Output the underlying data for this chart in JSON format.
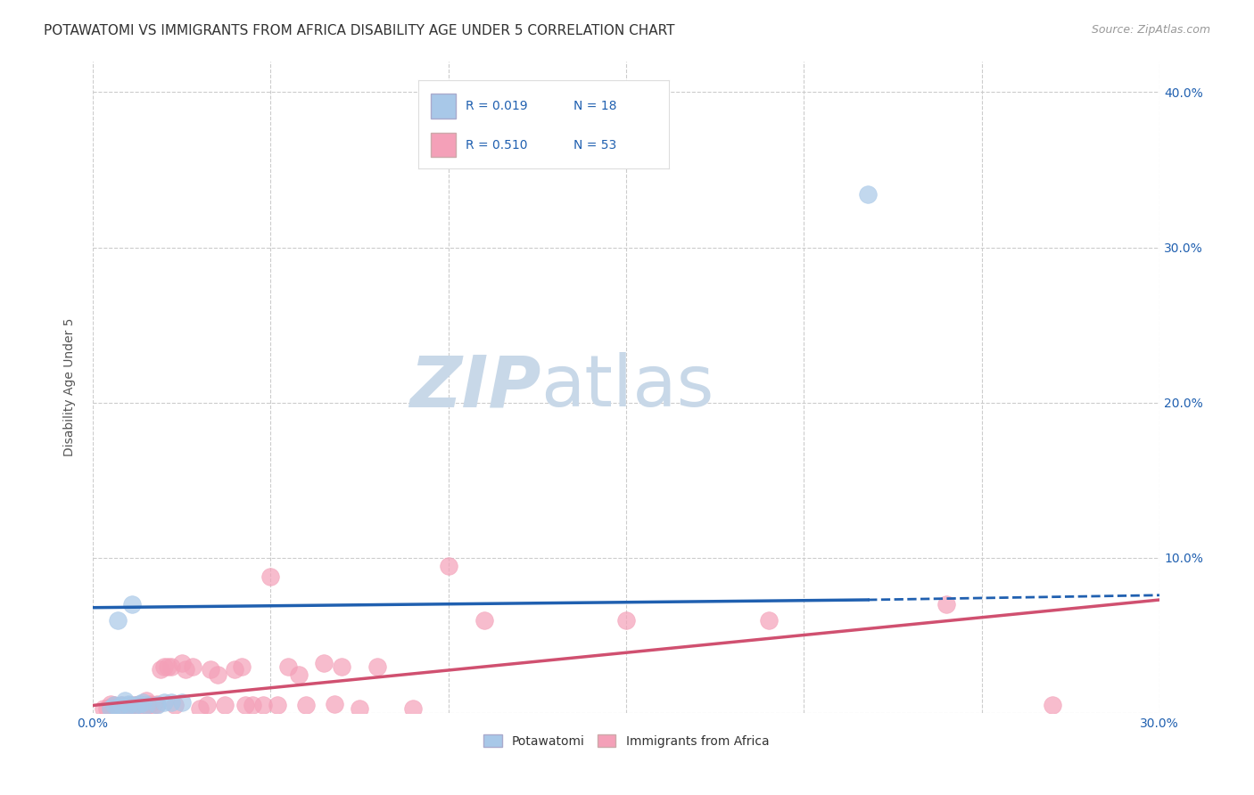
{
  "title": "POTAWATOMI VS IMMIGRANTS FROM AFRICA DISABILITY AGE UNDER 5 CORRELATION CHART",
  "source": "Source: ZipAtlas.com",
  "ylabel_label": "Disability Age Under 5",
  "xlim": [
    0.0,
    0.3
  ],
  "ylim": [
    0.0,
    0.42
  ],
  "xticks": [
    0.0,
    0.05,
    0.1,
    0.15,
    0.2,
    0.25,
    0.3
  ],
  "yticks": [
    0.0,
    0.1,
    0.2,
    0.3,
    0.4
  ],
  "xtick_labels": [
    "0.0%",
    "",
    "",
    "",
    "",
    "",
    "30.0%"
  ],
  "ytick_right_labels": [
    "",
    "10.0%",
    "20.0%",
    "30.0%",
    "40.0%"
  ],
  "blue_scatter_color": "#a8c8e8",
  "pink_scatter_color": "#f4a0b8",
  "blue_line_color": "#2060b0",
  "pink_line_color": "#d05070",
  "background_color": "#ffffff",
  "grid_color": "#cccccc",
  "watermark_zip": "ZIP",
  "watermark_atlas": "atlas",
  "watermark_color_zip": "#c8d8e8",
  "watermark_color_atlas": "#c8d8e8",
  "title_fontsize": 11,
  "axis_label_fontsize": 10,
  "tick_fontsize": 10,
  "potawatomi_x": [
    0.005,
    0.006,
    0.007,
    0.007,
    0.008,
    0.009,
    0.01,
    0.01,
    0.011,
    0.012,
    0.013,
    0.014,
    0.015,
    0.018,
    0.02,
    0.022,
    0.025,
    0.218
  ],
  "potawatomi_y": [
    0.003,
    0.005,
    0.004,
    0.06,
    0.005,
    0.008,
    0.006,
    0.005,
    0.07,
    0.005,
    0.006,
    0.007,
    0.005,
    0.005,
    0.007,
    0.007,
    0.007,
    0.334
  ],
  "africa_x": [
    0.003,
    0.004,
    0.005,
    0.005,
    0.006,
    0.007,
    0.008,
    0.009,
    0.01,
    0.011,
    0.012,
    0.013,
    0.014,
    0.015,
    0.015,
    0.016,
    0.017,
    0.018,
    0.019,
    0.02,
    0.021,
    0.022,
    0.023,
    0.025,
    0.026,
    0.028,
    0.03,
    0.032,
    0.033,
    0.035,
    0.037,
    0.04,
    0.042,
    0.043,
    0.045,
    0.048,
    0.05,
    0.052,
    0.055,
    0.058,
    0.06,
    0.065,
    0.068,
    0.07,
    0.075,
    0.08,
    0.09,
    0.1,
    0.11,
    0.15,
    0.19,
    0.24,
    0.27
  ],
  "africa_y": [
    0.003,
    0.003,
    0.004,
    0.006,
    0.005,
    0.003,
    0.005,
    0.003,
    0.004,
    0.005,
    0.005,
    0.006,
    0.005,
    0.008,
    0.005,
    0.006,
    0.005,
    0.006,
    0.028,
    0.03,
    0.03,
    0.03,
    0.005,
    0.032,
    0.028,
    0.03,
    0.003,
    0.005,
    0.028,
    0.025,
    0.005,
    0.028,
    0.03,
    0.005,
    0.005,
    0.005,
    0.088,
    0.005,
    0.03,
    0.025,
    0.005,
    0.032,
    0.006,
    0.03,
    0.003,
    0.03,
    0.003,
    0.095,
    0.06,
    0.06,
    0.06,
    0.07,
    0.005
  ],
  "blue_regression_x0": 0.0,
  "blue_regression_x_solid_end": 0.218,
  "blue_regression_x1": 0.3,
  "blue_regression_y0": 0.068,
  "blue_regression_y_solid_end": 0.073,
  "blue_regression_y1": 0.076,
  "pink_regression_x0": 0.0,
  "pink_regression_x1": 0.3,
  "pink_regression_y0": 0.005,
  "pink_regression_y1": 0.073
}
